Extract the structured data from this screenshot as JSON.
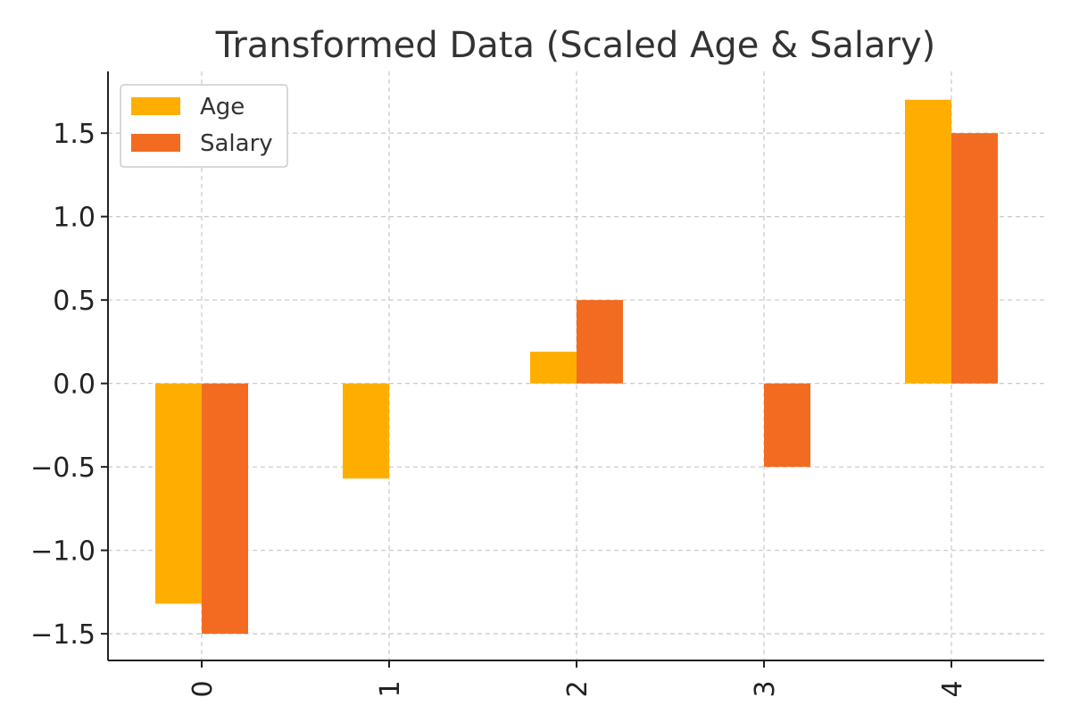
{
  "chart_data": {
    "type": "bar",
    "title": "Transformed Data (Scaled Age & Salary)",
    "xlabel": "",
    "ylabel": "",
    "categories": [
      "0",
      "1",
      "2",
      "3",
      "4"
    ],
    "series": [
      {
        "name": "Age",
        "values": [
          -1.32,
          -0.57,
          0.19,
          0.0,
          1.7
        ],
        "color": "#FFAE00"
      },
      {
        "name": "Salary",
        "values": [
          -1.5,
          0.0,
          0.5,
          -0.5,
          1.5
        ],
        "color": "#F26B21"
      }
    ],
    "ylim": [
      -1.66,
      1.87
    ],
    "yticks": [
      "−1.5",
      "−1.0",
      "−0.5",
      "0.0",
      "0.5",
      "1.0",
      "1.5"
    ],
    "ytick_values": [
      -1.5,
      -1.0,
      -0.5,
      0.0,
      0.5,
      1.0,
      1.5
    ],
    "grid": true,
    "legend_position": "top-left",
    "xtick_rotation": "vertical"
  }
}
